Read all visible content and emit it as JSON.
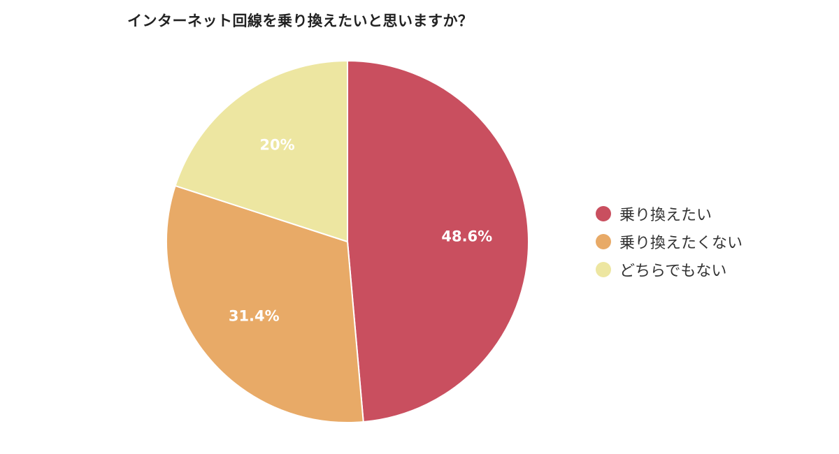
{
  "chart_data": {
    "type": "pie",
    "title": "インターネット回線を乗り換えたいと思いますか？",
    "categories": [
      "乗り換えたい",
      "乗り換えたくない",
      "どちらでもない"
    ],
    "values": [
      48.6,
      31.4,
      20
    ],
    "data_labels": [
      "48.6%",
      "31.4%",
      "20%"
    ],
    "colors": [
      "#c94f5f",
      "#e8aa67",
      "#ede6a1"
    ],
    "legend_position": "right"
  }
}
